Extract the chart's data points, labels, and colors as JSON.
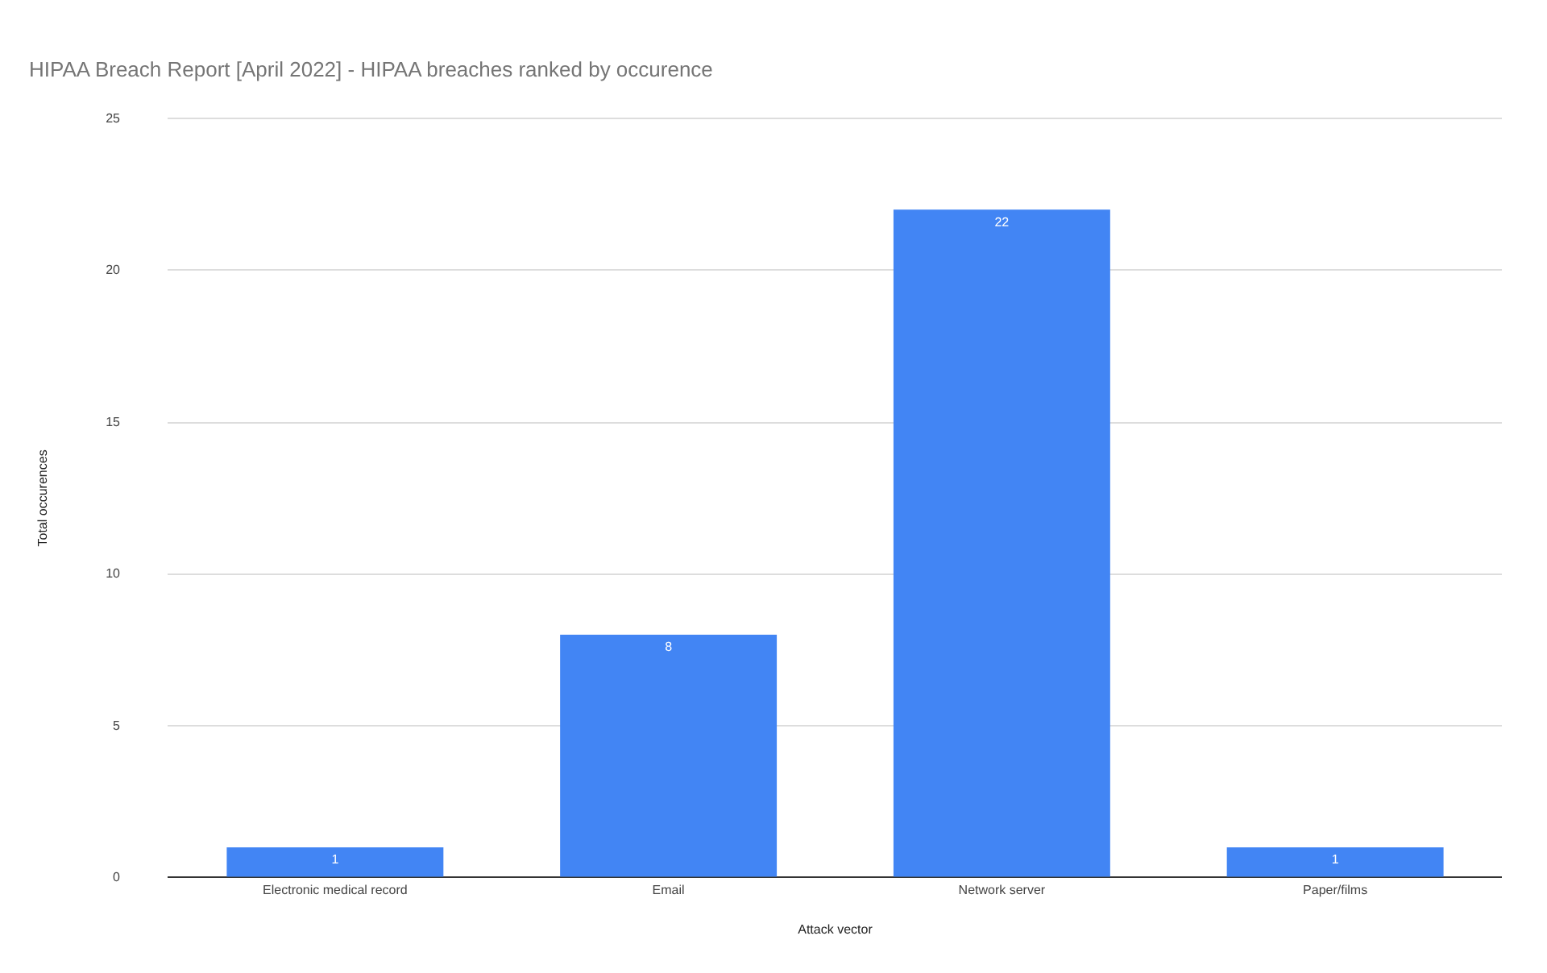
{
  "chart_data": {
    "type": "bar",
    "title": "HIPAA Breach Report [April 2022] - HIPAA breaches ranked by occurence",
    "xlabel": "Attack vector",
    "ylabel": "Total occurences",
    "categories": [
      "Electronic medical record",
      "Email",
      "Network server",
      "Paper/films"
    ],
    "values": [
      1,
      8,
      22,
      1
    ],
    "color": "#4285f4",
    "ylim": [
      0,
      25
    ],
    "yticks": [
      0,
      5,
      10,
      15,
      20,
      25
    ],
    "grid": "y",
    "data_labels": true,
    "legend": false
  }
}
